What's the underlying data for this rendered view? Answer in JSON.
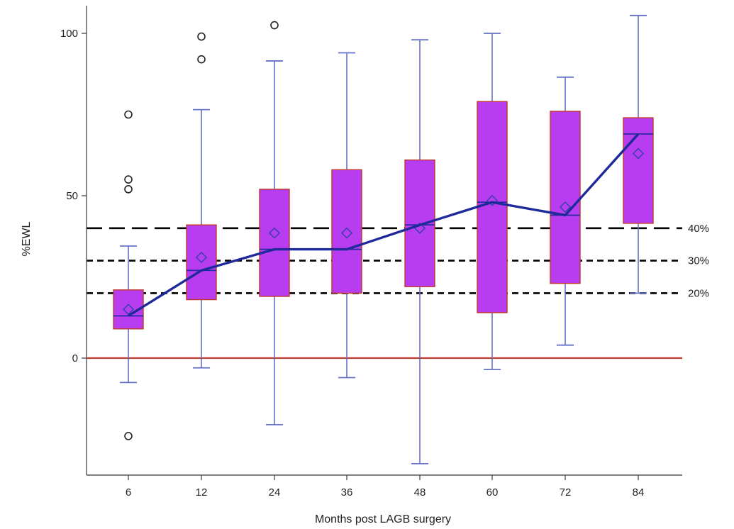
{
  "chart_data": {
    "type": "boxplot",
    "xlabel": "Months post LAGB surgery",
    "ylabel": "%EWL",
    "categories": [
      "6",
      "12",
      "24",
      "36",
      "48",
      "60",
      "72",
      "84"
    ],
    "yticks": [
      0,
      50,
      100
    ],
    "ylim": [
      -36,
      108
    ],
    "boxes": [
      {
        "category": "6",
        "whisker_low": -7.5,
        "q1": 9,
        "median": 13,
        "q3": 21,
        "whisker_high": 34.5,
        "mean": 15,
        "outliers": [
          75,
          55,
          52,
          -24
        ]
      },
      {
        "category": "12",
        "whisker_low": -3,
        "q1": 18,
        "median": 27,
        "q3": 41,
        "whisker_high": 76.5,
        "mean": 31,
        "outliers": [
          99,
          92
        ]
      },
      {
        "category": "24",
        "whisker_low": -20.5,
        "q1": 19,
        "median": 33.5,
        "q3": 52,
        "whisker_high": 91.5,
        "mean": 38.5,
        "outliers": [
          102.5
        ]
      },
      {
        "category": "36",
        "whisker_low": -6,
        "q1": 20,
        "median": 33.5,
        "q3": 58,
        "whisker_high": 94,
        "mean": 38.5,
        "outliers": []
      },
      {
        "category": "48",
        "whisker_low": -32.5,
        "q1": 22,
        "median": 41,
        "q3": 61,
        "whisker_high": 98,
        "mean": 40,
        "outliers": []
      },
      {
        "category": "60",
        "whisker_low": -3.5,
        "q1": 14,
        "median": 48,
        "q3": 79,
        "whisker_high": 100,
        "mean": 48.5,
        "outliers": []
      },
      {
        "category": "72",
        "whisker_low": 4,
        "q1": 23,
        "median": 44,
        "q3": 76,
        "whisker_high": 86.5,
        "mean": 46.5,
        "outliers": []
      },
      {
        "category": "84",
        "whisker_low": 20,
        "q1": 41.5,
        "median": 69,
        "q3": 74,
        "whisker_high": 105.5,
        "mean": 63,
        "outliers": []
      }
    ],
    "median_line": [
      13,
      27,
      33.5,
      33.5,
      41,
      48,
      44,
      69
    ],
    "reference_lines": [
      {
        "value": 40,
        "label": "40%",
        "style": "long-dash",
        "color": "#000000"
      },
      {
        "value": 30,
        "label": "30%",
        "style": "short-dash",
        "color": "#000000"
      },
      {
        "value": 20,
        "label": "20%",
        "style": "short-dash",
        "color": "#000000"
      },
      {
        "value": 0,
        "label": "",
        "style": "solid",
        "color": "#c0392b"
      }
    ],
    "colors": {
      "box_fill": "#b83cf0",
      "box_edge": "#c0392b",
      "whisker": "#6670c8",
      "median_line": "#1f2a9a",
      "mean_marker": "#3a3fb0",
      "outlier": "#222222",
      "axis": "#555555"
    }
  }
}
